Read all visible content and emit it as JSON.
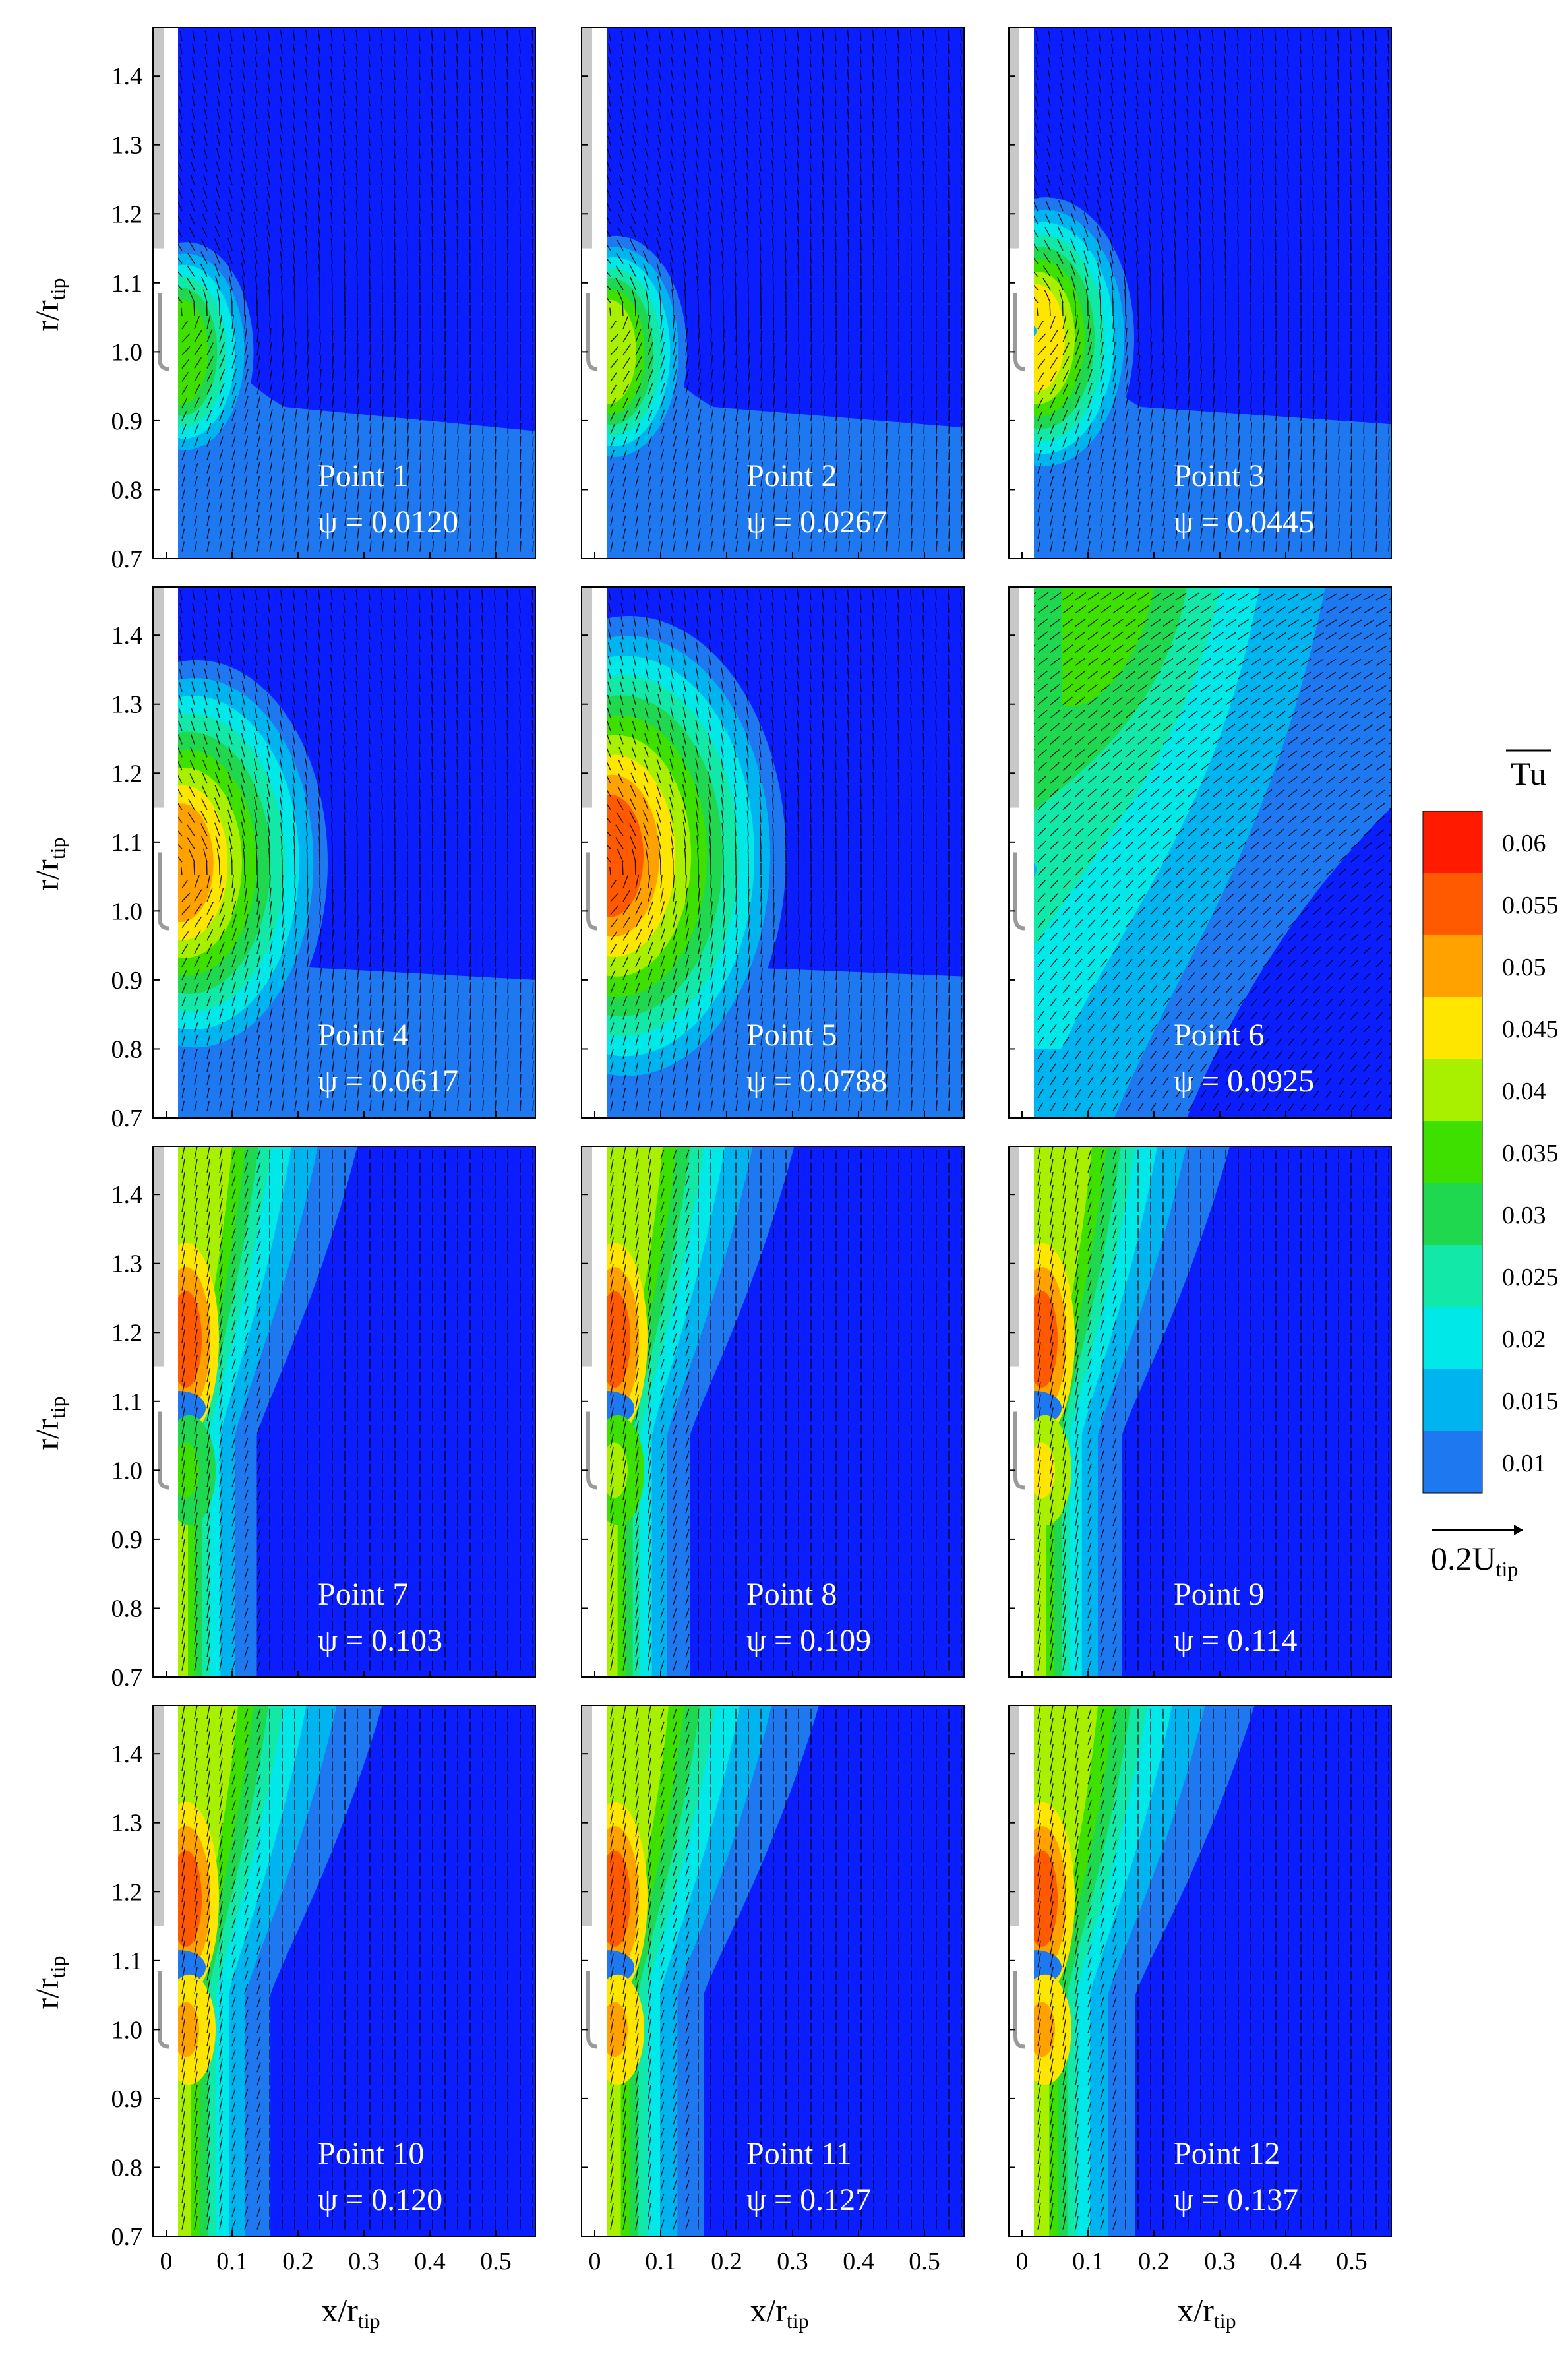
{
  "figure": {
    "colorbar": {
      "title": "Tu",
      "levels": [
        0.06,
        0.055,
        0.05,
        0.045,
        0.04,
        0.035,
        0.03,
        0.025,
        0.02,
        0.015,
        0.01
      ],
      "tick_labels": [
        "0.06",
        "0.055",
        "0.05",
        "0.045",
        "0.04",
        "0.035",
        "0.03",
        "0.025",
        "0.02",
        "0.015",
        "0.01"
      ],
      "colors": [
        "#ff1a00",
        "#ff5a00",
        "#ffa200",
        "#ffe600",
        "#a8f000",
        "#3ee000",
        "#20d850",
        "#12e8a8",
        "#00e8e8",
        "#00b4f0",
        "#1e78f0",
        "#0a1eff"
      ],
      "vector_reference_label": "0.2U",
      "vector_reference_sub": "tip"
    },
    "axes": {
      "xlabel_main": "x/r",
      "xlabel_sub": "tip",
      "ylabel_main": "r/r",
      "ylabel_sub": "tip",
      "xlim": [
        -0.02,
        0.56
      ],
      "ylim": [
        0.7,
        1.47
      ],
      "xtick_labels": [
        "0",
        "0.1",
        "0.2",
        "0.3",
        "0.4",
        "0.5"
      ],
      "ytick_labels": [
        "0.7",
        "0.8",
        "0.9",
        "1.0",
        "1.1",
        "1.2",
        "1.3",
        "1.4"
      ]
    }
  },
  "chart_data": {
    "type": "heatmap",
    "title": "",
    "grid": "3 columns x 4 rows of contour panels with velocity vectors",
    "x_axis": {
      "label": "x/r_tip",
      "range": [
        -0.02,
        0.56
      ],
      "ticks": [
        0,
        0.1,
        0.2,
        0.3,
        0.4,
        0.5
      ]
    },
    "y_axis": {
      "label": "r/r_tip",
      "range": [
        0.7,
        1.47
      ],
      "ticks": [
        0.7,
        0.8,
        0.9,
        1.0,
        1.1,
        1.2,
        1.3,
        1.4
      ]
    },
    "colorbar": {
      "variable": "Tu",
      "min": 0.01,
      "max": 0.06,
      "step": 0.005
    },
    "panels": [
      {
        "point": "Point 1",
        "psi": "ψ = 0.0120",
        "psi_value": 0.012
      },
      {
        "point": "Point 2",
        "psi": "ψ = 0.0267",
        "psi_value": 0.0267
      },
      {
        "point": "Point 3",
        "psi": "ψ = 0.0445",
        "psi_value": 0.0445
      },
      {
        "point": "Point 4",
        "psi": "ψ = 0.0617",
        "psi_value": 0.0617
      },
      {
        "point": "Point 5",
        "psi": "ψ = 0.0788",
        "psi_value": 0.0788
      },
      {
        "point": "Point 6",
        "psi": "ψ = 0.0925",
        "psi_value": 0.0925
      },
      {
        "point": "Point 7",
        "psi": "ψ = 0.103",
        "psi_value": 0.103
      },
      {
        "point": "Point 8",
        "psi": "ψ = 0.109",
        "psi_value": 0.109
      },
      {
        "point": "Point 9",
        "psi": "ψ = 0.114",
        "psi_value": 0.114
      },
      {
        "point": "Point 10",
        "psi": "ψ = 0.120",
        "psi_value": 0.12
      },
      {
        "point": "Point 11",
        "psi": "ψ = 0.127",
        "psi_value": 0.127
      },
      {
        "point": "Point 12",
        "psi": "ψ = 0.137",
        "psi_value": 0.137
      }
    ]
  }
}
